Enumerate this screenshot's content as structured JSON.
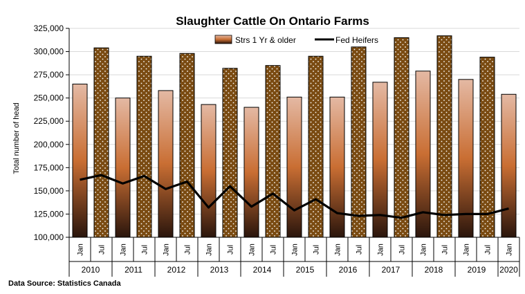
{
  "chart_data": {
    "type": "bar",
    "title": "Slaughter Cattle On Ontario Farms",
    "ylabel": "Total number of head",
    "xlabel": "",
    "ylim": [
      100000,
      325000
    ],
    "yticks": [
      "100,000",
      "125,000",
      "150,000",
      "175,000",
      "200,000",
      "225,000",
      "250,000",
      "275,000",
      "300,000",
      "325,000"
    ],
    "grid": true,
    "legend_position": "top",
    "categories": [
      "Jan",
      "Jul",
      "Jan",
      "Jul",
      "Jan",
      "Jul",
      "Jan",
      "Jul",
      "Jan",
      "Jul",
      "Jan",
      "Jul",
      "Jan",
      "Jul",
      "Jan",
      "Jul",
      "Jan",
      "Jul",
      "Jan",
      "Jul",
      "Jan"
    ],
    "years": [
      {
        "label": "2010",
        "span": 2
      },
      {
        "label": "2011",
        "span": 2
      },
      {
        "label": "2012",
        "span": 2
      },
      {
        "label": "2013",
        "span": 2
      },
      {
        "label": "2014",
        "span": 2
      },
      {
        "label": "2015",
        "span": 2
      },
      {
        "label": "2016",
        "span": 2
      },
      {
        "label": "2017",
        "span": 2
      },
      {
        "label": "2018",
        "span": 2
      },
      {
        "label": "2019",
        "span": 2
      },
      {
        "label": "2020",
        "span": 1
      }
    ],
    "series": [
      {
        "name": "Strs 1 Yr & older",
        "type": "bar",
        "values": [
          265000,
          304000,
          250000,
          295000,
          258000,
          298000,
          243000,
          282000,
          240000,
          285000,
          251000,
          295000,
          251000,
          305000,
          267000,
          315000,
          279000,
          317000,
          270000,
          294000,
          254000
        ]
      },
      {
        "name": "Fed Heifers",
        "type": "line",
        "values": [
          162000,
          167000,
          158000,
          166000,
          152000,
          160000,
          132000,
          155000,
          133000,
          147000,
          129000,
          141000,
          126000,
          123000,
          124000,
          121000,
          127000,
          124000,
          125000,
          125000,
          131000
        ]
      }
    ],
    "colors": {
      "jan_bar_top": "#e4b9a4",
      "jan_bar_mid": "#c96e33",
      "jan_bar_bottom": "#2a150c",
      "jul_bar_fill": "#7a4b12",
      "jul_bar_dots": "#ffffff",
      "line": "#000000",
      "grid": "#d9d9d9"
    }
  },
  "source_note": "Data Source: Statistics Canada"
}
